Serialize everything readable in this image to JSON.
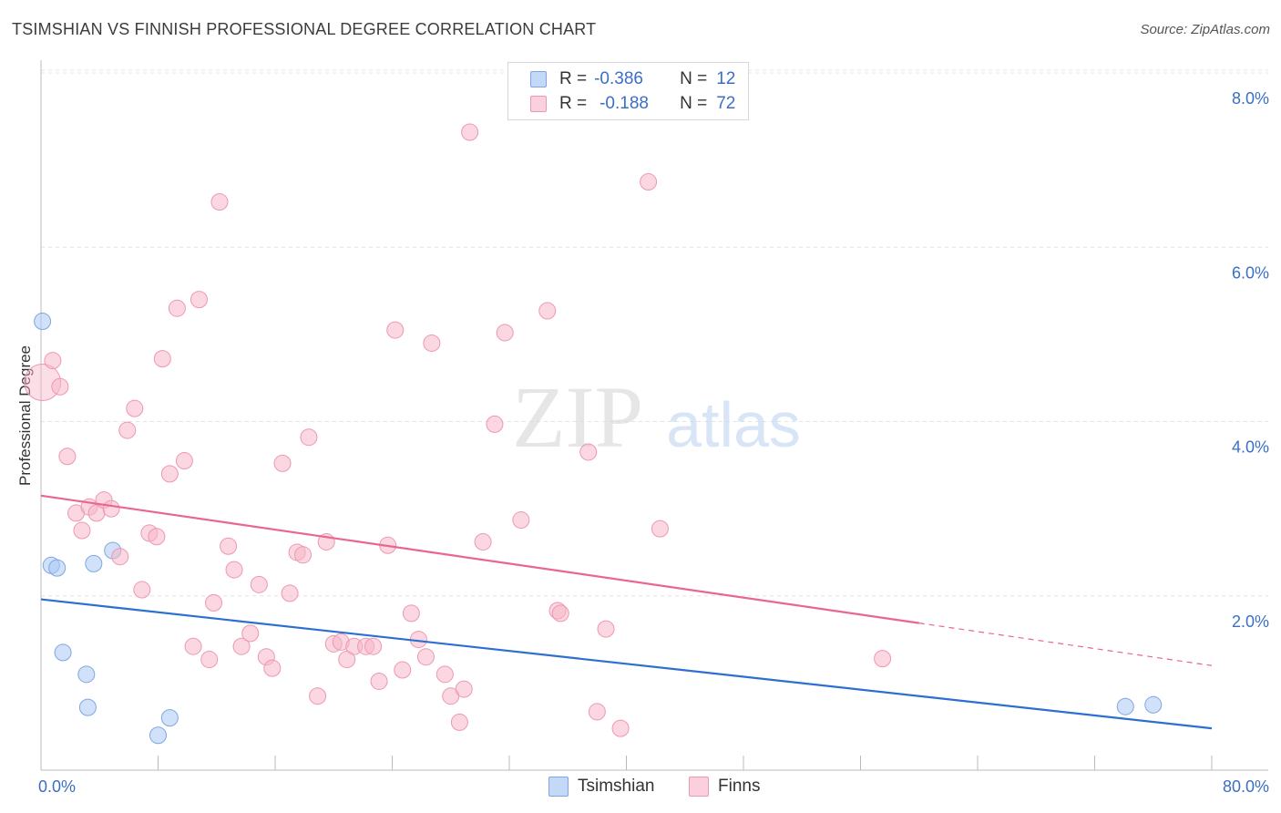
{
  "header": {
    "title": "TSIMSHIAN VS FINNISH PROFESSIONAL DEGREE CORRELATION CHART",
    "source": "Source: ZipAtlas.com"
  },
  "stats": [
    {
      "r_label": "R =",
      "r_value": "-0.386",
      "n_label": "N =",
      "n_value": "12",
      "color": "#a9c8f4"
    },
    {
      "r_label": "R =",
      "r_value": "-0.188",
      "n_label": "N =",
      "n_value": "72",
      "color": "#f6b6c8"
    }
  ],
  "watermark": {
    "zip": "ZIP",
    "atlas": "atlas"
  },
  "colors": {
    "tsimshian_fill": "#a9c8f4",
    "tsimshian_line": "#2d6fd0",
    "finns_fill": "#f6b6c8",
    "finns_line": "#e8678f",
    "tick_text": "#3b6fc4"
  },
  "chart_data": {
    "type": "scatter",
    "title": "TSIMSHIAN VS FINNISH PROFESSIONAL DEGREE CORRELATION CHART",
    "xlabel": "",
    "ylabel": "Professional Degree",
    "xlim": [
      0,
      80
    ],
    "ylim": [
      0,
      8.2
    ],
    "x_tick_labels": [
      "0.0%",
      "80.0%"
    ],
    "y_ticks": [
      2,
      4,
      6,
      8
    ],
    "y_tick_labels": [
      "2.0%",
      "4.0%",
      "6.0%",
      "8.0%"
    ],
    "grid": true,
    "legend_position": "bottom-center",
    "series": [
      {
        "name": "Tsimshian",
        "points": [
          [
            0.1,
            5.15
          ],
          [
            0.7,
            2.35
          ],
          [
            1.1,
            2.32
          ],
          [
            1.5,
            1.35
          ],
          [
            3.1,
            1.1
          ],
          [
            3.2,
            0.72
          ],
          [
            3.6,
            2.37
          ],
          [
            4.9,
            2.52
          ],
          [
            8.0,
            0.4
          ],
          [
            8.8,
            0.6
          ],
          [
            74.1,
            0.73
          ],
          [
            76.0,
            0.75
          ]
        ],
        "trend": {
          "x": [
            0,
            80
          ],
          "y": [
            1.96,
            0.48
          ],
          "dashed_from": null
        }
      },
      {
        "name": "Finns",
        "points": [
          [
            0.1,
            4.45
          ],
          [
            0.8,
            4.7
          ],
          [
            1.3,
            4.4
          ],
          [
            1.8,
            3.6
          ],
          [
            2.4,
            2.95
          ],
          [
            2.8,
            2.75
          ],
          [
            3.3,
            3.02
          ],
          [
            3.8,
            2.95
          ],
          [
            4.3,
            3.1
          ],
          [
            4.8,
            3.0
          ],
          [
            5.4,
            2.45
          ],
          [
            5.9,
            3.9
          ],
          [
            6.4,
            4.15
          ],
          [
            6.9,
            2.07
          ],
          [
            7.4,
            2.72
          ],
          [
            7.9,
            2.68
          ],
          [
            8.3,
            4.72
          ],
          [
            8.8,
            3.4
          ],
          [
            9.3,
            5.3
          ],
          [
            9.8,
            3.55
          ],
          [
            10.4,
            1.42
          ],
          [
            10.8,
            5.4
          ],
          [
            11.5,
            1.27
          ],
          [
            11.8,
            1.92
          ],
          [
            12.2,
            6.52
          ],
          [
            12.8,
            2.57
          ],
          [
            13.2,
            2.3
          ],
          [
            13.7,
            1.42
          ],
          [
            14.3,
            1.57
          ],
          [
            14.9,
            2.13
          ],
          [
            15.4,
            1.3
          ],
          [
            15.8,
            1.17
          ],
          [
            16.5,
            3.52
          ],
          [
            17.0,
            2.03
          ],
          [
            17.5,
            2.5
          ],
          [
            17.9,
            2.47
          ],
          [
            18.3,
            3.82
          ],
          [
            18.9,
            0.85
          ],
          [
            19.5,
            2.62
          ],
          [
            20.0,
            1.45
          ],
          [
            20.5,
            1.47
          ],
          [
            20.9,
            1.27
          ],
          [
            21.4,
            1.42
          ],
          [
            22.2,
            1.42
          ],
          [
            22.7,
            1.42
          ],
          [
            23.1,
            1.02
          ],
          [
            23.7,
            2.58
          ],
          [
            24.2,
            5.05
          ],
          [
            24.7,
            1.15
          ],
          [
            25.3,
            1.8
          ],
          [
            25.8,
            1.5
          ],
          [
            26.3,
            1.3
          ],
          [
            26.7,
            4.9
          ],
          [
            27.6,
            1.1
          ],
          [
            28.0,
            0.85
          ],
          [
            28.6,
            0.55
          ],
          [
            28.9,
            0.93
          ],
          [
            29.3,
            7.32
          ],
          [
            30.2,
            2.62
          ],
          [
            31.0,
            3.97
          ],
          [
            31.7,
            5.02
          ],
          [
            32.8,
            2.87
          ],
          [
            34.6,
            5.27
          ],
          [
            35.3,
            1.83
          ],
          [
            35.5,
            1.8
          ],
          [
            37.4,
            3.65
          ],
          [
            38.0,
            0.67
          ],
          [
            38.6,
            1.62
          ],
          [
            39.6,
            0.48
          ],
          [
            41.5,
            6.75
          ],
          [
            42.3,
            2.77
          ],
          [
            57.5,
            1.28
          ]
        ],
        "trend": {
          "x": [
            0,
            80
          ],
          "y": [
            3.15,
            1.2
          ],
          "dashed_from": 60
        }
      }
    ]
  }
}
